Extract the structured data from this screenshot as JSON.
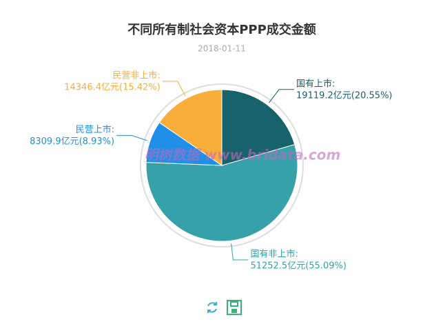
{
  "chart_data": {
    "type": "pie",
    "title": "不同所有制社会资本PPP成交金额",
    "subtitle": "2018-01-11",
    "watermark": "明树数据 www.bridata.com",
    "categories": [
      "国有上市:",
      "国有非上市:",
      "民营上市:",
      "民营非上市:"
    ],
    "values": [
      19119.2,
      51252.5,
      8309.9,
      14346.4
    ],
    "value_labels": [
      "19119.2亿元(20.55%)",
      "51252.5亿元(55.09%)",
      "8309.9亿元(8.93%)",
      "14346.4亿元(15.42%)"
    ],
    "colors": [
      "#17626b",
      "#36a1a9",
      "#1f8fe8",
      "#f9ad3a"
    ]
  }
}
